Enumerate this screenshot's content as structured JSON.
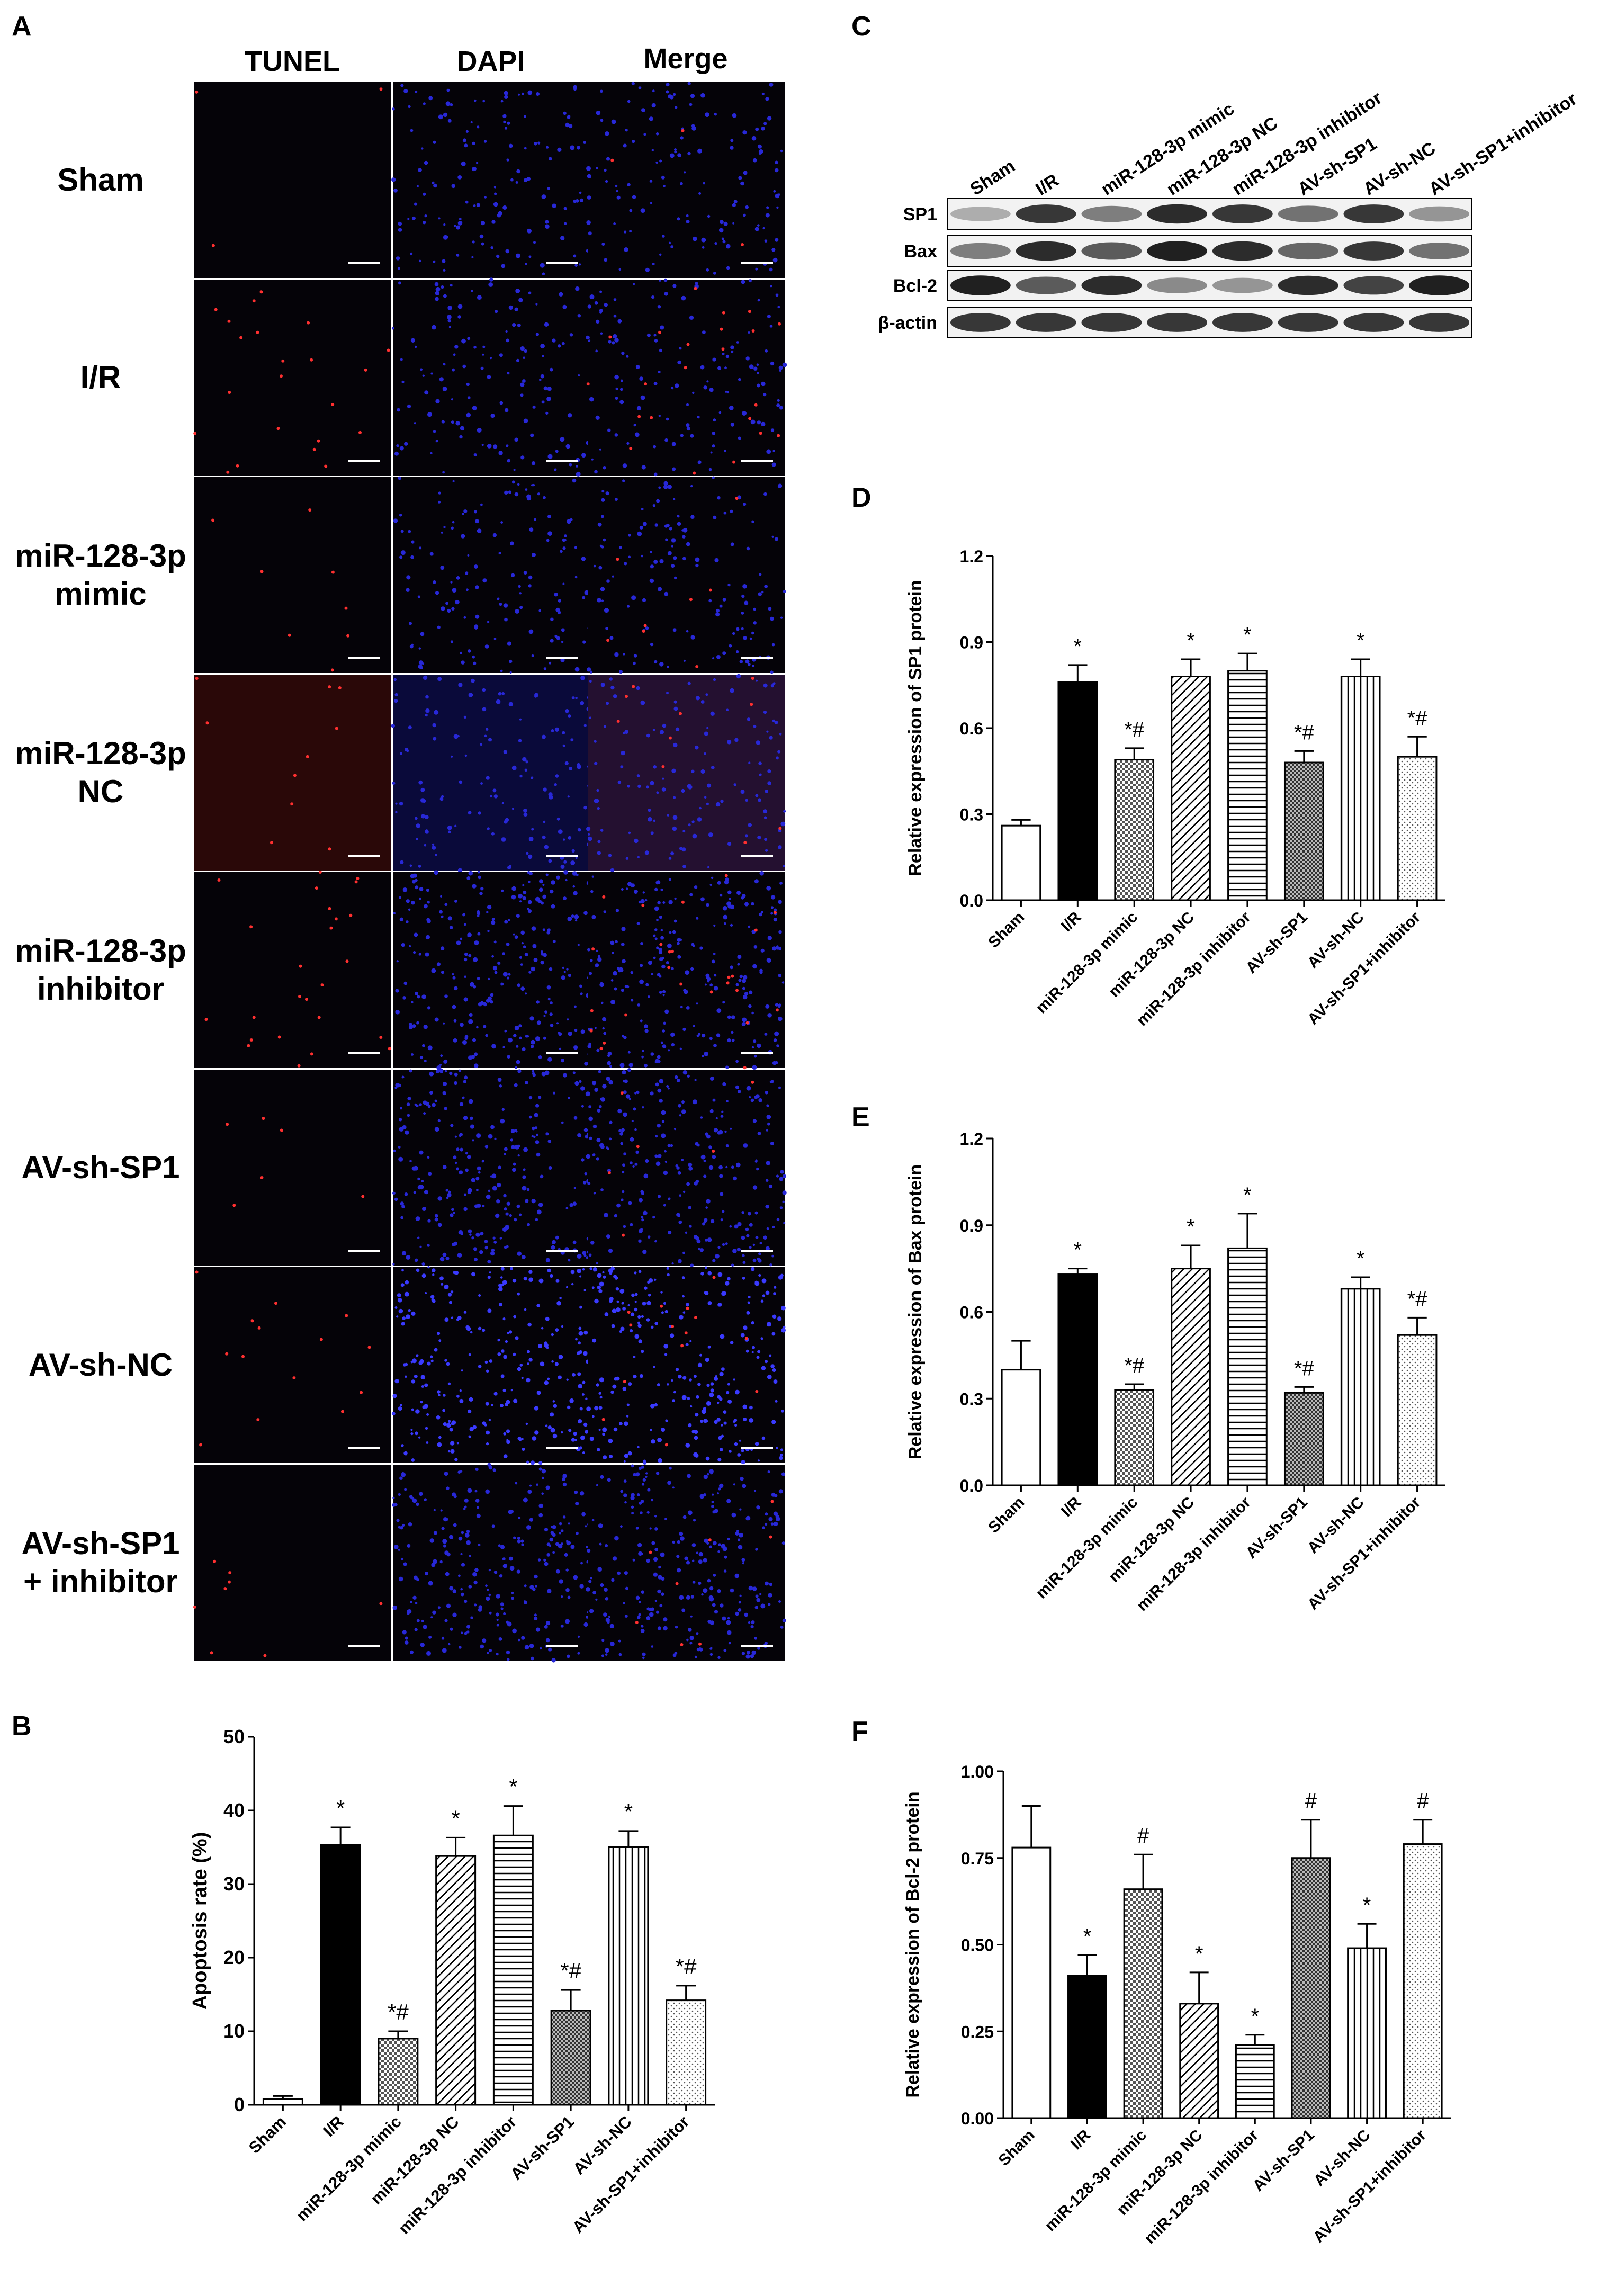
{
  "panels": {
    "A": "A",
    "B": "B",
    "C": "C",
    "D": "D",
    "E": "E",
    "F": "F"
  },
  "micro": {
    "columns": [
      "TUNEL",
      "DAPI",
      "Merge"
    ],
    "rows": [
      {
        "label": "Sham"
      },
      {
        "label": "I/R"
      },
      {
        "label": "miR-128-3p\nmimic"
      },
      {
        "label": "miR-128-3p\nNC"
      },
      {
        "label": "miR-128-3p\ninhibitor"
      },
      {
        "label": "AV-sh-SP1"
      },
      {
        "label": "AV-sh-NC"
      },
      {
        "label": "AV-sh-SP1\n+ inhibitor"
      }
    ]
  },
  "blot": {
    "lanes": [
      "Sham",
      "I/R",
      "miR-128-3p mimic",
      "miR-128-3p NC",
      "miR-128-3p inhibitor",
      "AV-sh-SP1",
      "AV-sh-NC",
      "AV-sh-SP1+inhibitor"
    ],
    "rows": [
      {
        "name": "SP1",
        "intensity": [
          0.35,
          0.85,
          0.55,
          0.9,
          0.85,
          0.6,
          0.85,
          0.45
        ]
      },
      {
        "name": "Bax",
        "intensity": [
          0.55,
          0.9,
          0.7,
          0.95,
          0.9,
          0.65,
          0.85,
          0.6
        ]
      },
      {
        "name": "Bcl-2",
        "intensity": [
          0.95,
          0.7,
          0.9,
          0.5,
          0.45,
          0.9,
          0.8,
          0.95
        ]
      },
      {
        "name": "β-actin",
        "intensity": [
          0.85,
          0.85,
          0.85,
          0.85,
          0.85,
          0.85,
          0.85,
          0.85
        ]
      }
    ]
  },
  "chart_data": [
    {
      "id": "B",
      "type": "bar",
      "categories": [
        "Sham",
        "I/R",
        "miR-128-3p mimic",
        "miR-128-3p NC",
        "miR-128-3p inhibitor",
        "AV-sh-SP1",
        "AV-sh-NC",
        "AV-sh-SP1+inhibitor"
      ],
      "values": [
        0.8,
        35.3,
        9.0,
        33.8,
        36.6,
        12.8,
        35.0,
        14.2
      ],
      "errors": [
        0.4,
        2.4,
        1.0,
        2.5,
        4.0,
        2.8,
        2.2,
        2.0
      ],
      "annotations": [
        "",
        "*",
        "*#",
        "*",
        "*",
        "*#",
        "*",
        "*#"
      ],
      "patterns": [
        "white",
        "black",
        "checker",
        "diag",
        "horiz",
        "dense-checker",
        "vert",
        "dots"
      ],
      "ylabel": "Apoptosis rate (%)",
      "ylim": [
        0,
        50
      ],
      "yticks": [
        "0",
        "10",
        "20",
        "30",
        "40",
        "50"
      ]
    },
    {
      "id": "D",
      "type": "bar",
      "categories": [
        "Sham",
        "I/R",
        "miR-128-3p mimic",
        "miR-128-3p NC",
        "miR-128-3p inhibitor",
        "AV-sh-SP1",
        "AV-sh-NC",
        "AV-sh-SP1+inhibitor"
      ],
      "values": [
        0.26,
        0.76,
        0.49,
        0.78,
        0.8,
        0.48,
        0.78,
        0.5
      ],
      "errors": [
        0.02,
        0.06,
        0.04,
        0.06,
        0.06,
        0.04,
        0.06,
        0.07
      ],
      "annotations": [
        "",
        "*",
        "*#",
        "*",
        "*",
        "*#",
        "*",
        "*#"
      ],
      "patterns": [
        "white",
        "black",
        "checker",
        "diag",
        "horiz",
        "dense-checker",
        "vert",
        "dots"
      ],
      "ylabel": "Relative expression of SP1 protein",
      "ylim": [
        0,
        1.2
      ],
      "yticks": [
        "0.0",
        "0.3",
        "0.6",
        "0.9",
        "1.2"
      ]
    },
    {
      "id": "E",
      "type": "bar",
      "categories": [
        "Sham",
        "I/R",
        "miR-128-3p mimic",
        "miR-128-3p NC",
        "miR-128-3p inhibitor",
        "AV-sh-SP1",
        "AV-sh-NC",
        "AV-sh-SP1+inhibitor"
      ],
      "values": [
        0.4,
        0.73,
        0.33,
        0.75,
        0.82,
        0.32,
        0.68,
        0.52
      ],
      "errors": [
        0.1,
        0.02,
        0.02,
        0.08,
        0.12,
        0.02,
        0.04,
        0.06
      ],
      "annotations": [
        "",
        "*",
        "*#",
        "*",
        "*",
        "*#",
        "*",
        "*#"
      ],
      "patterns": [
        "white",
        "black",
        "checker",
        "diag",
        "horiz",
        "dense-checker",
        "vert",
        "dots"
      ],
      "ylabel": "Relative expression of Bax protein",
      "ylim": [
        0,
        1.2
      ],
      "yticks": [
        "0.0",
        "0.3",
        "0.6",
        "0.9",
        "1.2"
      ]
    },
    {
      "id": "F",
      "type": "bar",
      "categories": [
        "Sham",
        "I/R",
        "miR-128-3p mimic",
        "miR-128-3p NC",
        "miR-128-3p inhibitor",
        "AV-sh-SP1",
        "AV-sh-NC",
        "AV-sh-SP1+inhibitor"
      ],
      "values": [
        0.78,
        0.41,
        0.66,
        0.33,
        0.21,
        0.75,
        0.49,
        0.79
      ],
      "errors": [
        0.12,
        0.06,
        0.1,
        0.09,
        0.03,
        0.11,
        0.07,
        0.07
      ],
      "annotations": [
        "",
        "*",
        "#",
        "*",
        "*",
        "#",
        "*",
        "#"
      ],
      "patterns": [
        "white",
        "black",
        "checker",
        "diag",
        "horiz",
        "dense-checker",
        "vert",
        "dots"
      ],
      "ylabel": "Relative expression of Bcl-2 protein",
      "ylim": [
        0,
        1.0
      ],
      "yticks": [
        "0.00",
        "0.25",
        "0.50",
        "0.75",
        "1.00"
      ]
    }
  ]
}
